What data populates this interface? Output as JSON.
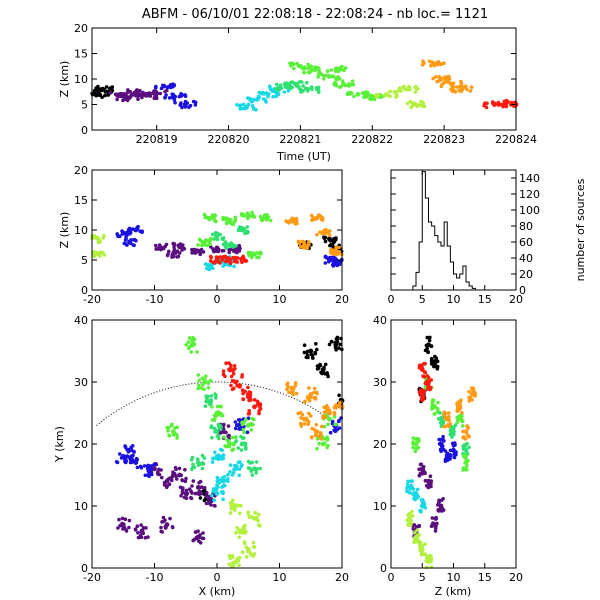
{
  "title": "ABFM - 06/10/01 22:08:18 - 22:08:24 - nb loc.=   1121",
  "colors": [
    "#000000",
    "#5a0f7f",
    "#1a10e0",
    "#17d8e4",
    "#2fe070",
    "#5af03a",
    "#b4f040",
    "#ff9a15",
    "#ff1a10"
  ],
  "chart_data": [
    {
      "id": "time-height",
      "type": "scatter",
      "xlabel": "Time (UT)",
      "ylabel": "Z (km)",
      "xlim": [
        220818.1,
        220824.0
      ],
      "ylim": [
        0,
        20
      ],
      "xticks": [
        220819,
        220820,
        220821,
        220822,
        220823,
        220824
      ],
      "xtick_labels": [
        "220819",
        "220820",
        "220821",
        "220822",
        "220823",
        "220824"
      ],
      "yticks": [
        0,
        5,
        10,
        15,
        20
      ],
      "ytick_labels": [
        "0",
        "5",
        "10",
        "15",
        "20"
      ],
      "clusters": [
        {
          "c": 0,
          "pts": [
            [
              220818.15,
              7.5
            ],
            [
              220818.2,
              7.0
            ],
            [
              220818.25,
              8.0
            ]
          ]
        },
        {
          "c": 1,
          "pts": [
            [
              220818.5,
              7.0
            ],
            [
              220818.7,
              7.3
            ],
            [
              220818.85,
              6.8
            ],
            [
              220819.0,
              7.2
            ],
            [
              220818.6,
              6.3
            ]
          ]
        },
        {
          "c": 2,
          "pts": [
            [
              220819.1,
              8.6
            ],
            [
              220819.25,
              6.5
            ],
            [
              220819.4,
              5.0
            ]
          ]
        },
        {
          "c": 3,
          "pts": [
            [
              220820.25,
              4.5
            ],
            [
              220820.4,
              6.0
            ],
            [
              220820.55,
              7.0
            ],
            [
              220820.7,
              8.0
            ]
          ]
        },
        {
          "c": 4,
          "pts": [
            [
              220820.8,
              8.5
            ],
            [
              220820.95,
              9.0
            ],
            [
              220821.1,
              8.0
            ]
          ]
        },
        {
          "c": 5,
          "pts": [
            [
              220821.0,
              12.5
            ],
            [
              220821.2,
              11.8
            ],
            [
              220821.4,
              10.5
            ],
            [
              220821.6,
              9.0
            ],
            [
              220821.8,
              7.0
            ],
            [
              220822.0,
              6.5
            ],
            [
              220821.5,
              12.0
            ]
          ]
        },
        {
          "c": 6,
          "pts": [
            [
              220822.2,
              7.0
            ],
            [
              220822.5,
              8.0
            ],
            [
              220822.6,
              5.0
            ]
          ]
        },
        {
          "c": 7,
          "pts": [
            [
              220822.85,
              13.0
            ],
            [
              220822.95,
              10.0
            ],
            [
              220823.1,
              9.0
            ],
            [
              220823.25,
              8.0
            ]
          ]
        },
        {
          "c": 8,
          "pts": [
            [
              220823.7,
              5.0
            ],
            [
              220823.85,
              5.2
            ],
            [
              220824.0,
              5.0
            ]
          ]
        }
      ]
    },
    {
      "id": "x-z",
      "type": "scatter",
      "xlabel": "",
      "ylabel": "Z (km)",
      "xlim": [
        -20,
        20
      ],
      "ylim": [
        0,
        20
      ],
      "xticks": [
        -20,
        -10,
        0,
        10,
        20
      ],
      "xtick_labels": [
        "-20",
        "-10",
        "0",
        "10",
        "20"
      ],
      "yticks": [
        0,
        5,
        10,
        15,
        20
      ],
      "ytick_labels": [
        "0",
        "5",
        "10",
        "15",
        "20"
      ],
      "clusters": [
        {
          "c": 0,
          "pts": [
            [
              14,
              7.5
            ],
            [
              18,
              8.5
            ],
            [
              19,
              7.0
            ]
          ]
        },
        {
          "c": 1,
          "pts": [
            [
              -9,
              7.0
            ],
            [
              -6,
              7.2
            ],
            [
              -3,
              6.5
            ],
            [
              0,
              7.0
            ],
            [
              3,
              6.8
            ],
            [
              -7,
              6.0
            ]
          ]
        },
        {
          "c": 2,
          "pts": [
            [
              -15,
              9.5
            ],
            [
              -14,
              8.0
            ],
            [
              -13,
              10.0
            ],
            [
              18,
              5.0
            ],
            [
              19,
              4.5
            ]
          ]
        },
        {
          "c": 3,
          "pts": [
            [
              -1,
              4.0
            ],
            [
              1,
              5.0
            ],
            [
              2,
              4.5
            ]
          ]
        },
        {
          "c": 4,
          "pts": [
            [
              0,
              9.0
            ],
            [
              2,
              7.5
            ],
            [
              4,
              10.0
            ]
          ]
        },
        {
          "c": 5,
          "pts": [
            [
              -1,
              12.0
            ],
            [
              2,
              11.5
            ],
            [
              5,
              12.5
            ],
            [
              8,
              12.0
            ],
            [
              -2,
              8.0
            ],
            [
              6,
              6.0
            ]
          ]
        },
        {
          "c": 6,
          "pts": [
            [
              -19,
              8.5
            ],
            [
              -19,
              6.0
            ]
          ]
        },
        {
          "c": 7,
          "pts": [
            [
              12,
              11.5
            ],
            [
              16,
              12.0
            ],
            [
              14,
              7.5
            ],
            [
              17,
              9.5
            ],
            [
              19,
              6.5
            ]
          ]
        },
        {
          "c": 8,
          "pts": [
            [
              0,
              5.0
            ],
            [
              2,
              5.0
            ],
            [
              4,
              5.2
            ]
          ]
        }
      ]
    },
    {
      "id": "height-histogram",
      "type": "bar",
      "xlabel": "",
      "ylabel": "number of sources",
      "xlim": [
        0,
        20
      ],
      "ylim": [
        0,
        150
      ],
      "xticks": [
        0,
        5,
        10,
        15,
        20
      ],
      "xtick_labels": [
        "0",
        "5",
        "10",
        "15",
        "20"
      ],
      "yticks": [
        0,
        20,
        40,
        60,
        80,
        100,
        120,
        140
      ],
      "ytick_labels": [
        "0",
        "20",
        "40",
        "60",
        "80",
        "100",
        "120",
        "140"
      ],
      "bin_edges": [
        3.5,
        4.0,
        4.5,
        5.0,
        5.5,
        6.0,
        6.5,
        7.0,
        7.5,
        8.0,
        8.5,
        9.0,
        9.5,
        10.0,
        10.5,
        11.0,
        11.5,
        12.0,
        12.5,
        13.0,
        13.5
      ],
      "values": [
        5,
        22,
        60,
        148,
        115,
        85,
        80,
        68,
        60,
        55,
        85,
        55,
        35,
        20,
        15,
        20,
        30,
        10,
        5,
        2
      ]
    },
    {
      "id": "plan-view",
      "type": "scatter",
      "xlabel": "X (km)",
      "ylabel": "Y (km)",
      "xlim": [
        -20,
        20
      ],
      "ylim": [
        0,
        40
      ],
      "xticks": [
        -20,
        -10,
        0,
        10,
        20
      ],
      "xtick_labels": [
        "-20",
        "-10",
        "0",
        "10",
        "20"
      ],
      "yticks": [
        0,
        10,
        20,
        30,
        40
      ],
      "ytick_labels": [
        "0",
        "10",
        "20",
        "30",
        "40"
      ],
      "range_ring_km": 30,
      "clusters": [
        {
          "c": 0,
          "pts": [
            [
              15,
              35
            ],
            [
              17,
              32
            ],
            [
              19,
              36
            ],
            [
              20,
              27
            ],
            [
              -2,
              12
            ]
          ]
        },
        {
          "c": 1,
          "pts": [
            [
              -10,
              16
            ],
            [
              -8,
              14
            ],
            [
              -6,
              15
            ],
            [
              -5,
              12
            ],
            [
              -3,
              13
            ],
            [
              -1,
              11
            ],
            [
              -15,
              7
            ],
            [
              -12,
              6
            ],
            [
              -8,
              7
            ],
            [
              -3,
              5
            ],
            [
              1,
              22
            ]
          ]
        },
        {
          "c": 2,
          "pts": [
            [
              -15,
              18
            ],
            [
              -14,
              19
            ],
            [
              -13,
              17
            ],
            [
              -11,
              16
            ],
            [
              4,
              23
            ],
            [
              19,
              23
            ]
          ]
        },
        {
          "c": 3,
          "pts": [
            [
              0,
              12
            ],
            [
              1,
              14
            ],
            [
              3,
              16
            ],
            [
              0,
              18
            ]
          ]
        },
        {
          "c": 4,
          "pts": [
            [
              -3,
              17
            ],
            [
              0,
              22
            ],
            [
              4,
              20
            ],
            [
              6,
              16
            ],
            [
              -1,
              27
            ]
          ]
        },
        {
          "c": 5,
          "pts": [
            [
              -4,
              36
            ],
            [
              -2,
              30
            ],
            [
              0,
              25
            ],
            [
              2,
              20
            ],
            [
              5,
              23
            ],
            [
              -7,
              22
            ],
            [
              17,
              20
            ],
            [
              18,
              24
            ]
          ]
        },
        {
          "c": 6,
          "pts": [
            [
              3,
              10
            ],
            [
              4,
              6
            ],
            [
              5,
              3
            ],
            [
              3,
              1
            ],
            [
              6,
              8
            ]
          ]
        },
        {
          "c": 7,
          "pts": [
            [
              12,
              29
            ],
            [
              15,
              28
            ],
            [
              18,
              25
            ],
            [
              16,
              22
            ],
            [
              14,
              24
            ],
            [
              20,
              26
            ]
          ]
        },
        {
          "c": 8,
          "pts": [
            [
              2,
              32
            ],
            [
              3,
              30
            ],
            [
              5,
              28
            ],
            [
              6,
              26
            ]
          ]
        }
      ]
    },
    {
      "id": "z-y",
      "type": "scatter",
      "xlabel": "Z (km)",
      "ylabel": "",
      "xlim": [
        0,
        20
      ],
      "ylim": [
        0,
        40
      ],
      "xticks": [
        0,
        5,
        10,
        15,
        20
      ],
      "xtick_labels": [
        "0",
        "5",
        "10",
        "15",
        "20"
      ],
      "yticks": [
        0,
        10,
        20,
        30,
        40
      ],
      "ytick_labels": [
        "0",
        "10",
        "20",
        "30",
        "40"
      ],
      "clusters": [
        {
          "c": 0,
          "pts": [
            [
              6,
              36
            ],
            [
              7,
              33
            ],
            [
              5,
              28
            ]
          ]
        },
        {
          "c": 1,
          "pts": [
            [
              5,
              16
            ],
            [
              6,
              14
            ],
            [
              7,
              7
            ],
            [
              4,
              6
            ],
            [
              8,
              10
            ]
          ]
        },
        {
          "c": 2,
          "pts": [
            [
              8,
              20
            ],
            [
              9,
              18
            ],
            [
              10,
              19
            ]
          ]
        },
        {
          "c": 3,
          "pts": [
            [
              4,
              12
            ],
            [
              5,
              10
            ],
            [
              3,
              13
            ]
          ]
        },
        {
          "c": 4,
          "pts": [
            [
              8,
              24
            ],
            [
              10,
              22
            ],
            [
              12,
              19
            ]
          ]
        },
        {
          "c": 5,
          "pts": [
            [
              6,
              30
            ],
            [
              7,
              26
            ],
            [
              11,
              24
            ],
            [
              12,
              17
            ],
            [
              4,
              20
            ]
          ]
        },
        {
          "c": 6,
          "pts": [
            [
              4,
              5
            ],
            [
              5,
              3
            ],
            [
              6,
              1
            ],
            [
              3,
              8
            ]
          ]
        },
        {
          "c": 7,
          "pts": [
            [
              13,
              28
            ],
            [
              11,
              26
            ],
            [
              9,
              24
            ],
            [
              12,
              22
            ]
          ]
        },
        {
          "c": 8,
          "pts": [
            [
              5,
              32
            ],
            [
              6,
              30
            ],
            [
              5,
              28
            ]
          ]
        }
      ]
    }
  ]
}
